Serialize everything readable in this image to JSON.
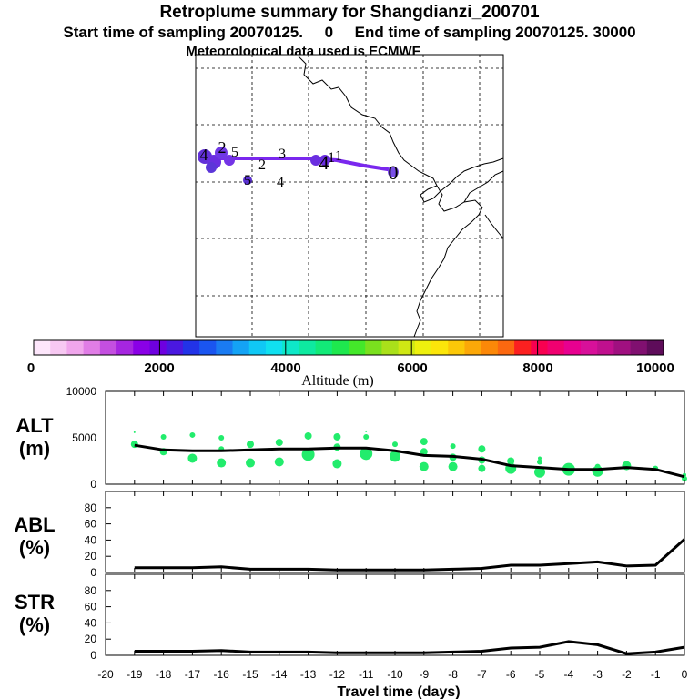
{
  "header": {
    "title": "Retroplume summary for Shangdianzi_200701",
    "subtitle": "Start time of sampling 20070125.     0     End time of sampling 20070125. 30000",
    "met": "Meteorological data used is ECMWF"
  },
  "chart_data": [
    {
      "type": "map",
      "name": "retroplume-track",
      "track_labels": [
        {
          "label": "0"
        },
        {
          "label": "1"
        },
        {
          "label": "2"
        },
        {
          "label": "3"
        },
        {
          "label": "4"
        },
        {
          "label": "5"
        },
        {
          "label": "2"
        },
        {
          "label": "4"
        },
        {
          "label": "5"
        },
        {
          "label": "1"
        },
        {
          "label": "4"
        }
      ]
    },
    {
      "type": "colorbar",
      "xlabel": "Altitude (m)",
      "ticks": [
        "0",
        "2000",
        "4000",
        "6000",
        "8000",
        "10000"
      ],
      "range": [
        0,
        10000
      ],
      "colors": [
        "#fde6fb",
        "#f7c8f2",
        "#f0a6ec",
        "#e07de6",
        "#c44fe0",
        "#a626e0",
        "#8a00e6",
        "#6e00e0",
        "#4a18e0",
        "#2233e8",
        "#1a55f0",
        "#1a7bf2",
        "#14a3f5",
        "#10c8f5",
        "#10e0f0",
        "#0ee8c8",
        "#0eeaa0",
        "#12ea78",
        "#1ee84e",
        "#44e82a",
        "#7ae01e",
        "#aae01a",
        "#d0e814",
        "#eef00e",
        "#fce60a",
        "#fcc808",
        "#fca808",
        "#fc8808",
        "#fc6810",
        "#fc2020",
        "#f80050",
        "#f00070",
        "#e80090",
        "#d8109a",
        "#c0108e",
        "#a01080",
        "#801070",
        "#5e0c5a"
      ]
    },
    {
      "type": "line",
      "name": "ALT",
      "ylabel": "ALT",
      "yunit": "(m)",
      "ylim": [
        0,
        10000
      ],
      "yticks": [
        "10000",
        "5000",
        "0"
      ],
      "x": [
        -19,
        -18,
        -17,
        -16,
        -15,
        -14,
        -13,
        -12,
        -11,
        -10,
        -9,
        -8,
        -7,
        -6,
        -5,
        -4,
        -3,
        -2,
        -1,
        0
      ],
      "values": [
        4200,
        3700,
        3600,
        3600,
        3700,
        3800,
        3800,
        3900,
        3900,
        3600,
        3100,
        3000,
        2700,
        2000,
        1800,
        1600,
        1600,
        1800,
        1600,
        800
      ],
      "dots": [
        {
          "x": -19,
          "y": 4300,
          "r": 4
        },
        {
          "x": -19,
          "y": 5600,
          "r": 1
        },
        {
          "x": -18,
          "y": 3500,
          "r": 4
        },
        {
          "x": -18,
          "y": 5100,
          "r": 3
        },
        {
          "x": -17,
          "y": 2800,
          "r": 5
        },
        {
          "x": -17,
          "y": 5300,
          "r": 3
        },
        {
          "x": -16,
          "y": 2300,
          "r": 5
        },
        {
          "x": -16,
          "y": 3800,
          "r": 3
        },
        {
          "x": -16,
          "y": 5000,
          "r": 3
        },
        {
          "x": -15,
          "y": 2300,
          "r": 5
        },
        {
          "x": -15,
          "y": 4300,
          "r": 4
        },
        {
          "x": -14,
          "y": 2400,
          "r": 5
        },
        {
          "x": -14,
          "y": 4500,
          "r": 4
        },
        {
          "x": -13,
          "y": 3200,
          "r": 7
        },
        {
          "x": -13,
          "y": 5200,
          "r": 4
        },
        {
          "x": -12,
          "y": 2200,
          "r": 5
        },
        {
          "x": -12,
          "y": 4000,
          "r": 4
        },
        {
          "x": -12,
          "y": 5100,
          "r": 4
        },
        {
          "x": -11,
          "y": 3300,
          "r": 7
        },
        {
          "x": -11,
          "y": 5100,
          "r": 3
        },
        {
          "x": -11,
          "y": 5700,
          "r": 1
        },
        {
          "x": -10,
          "y": 3000,
          "r": 6
        },
        {
          "x": -10,
          "y": 4300,
          "r": 3
        },
        {
          "x": -9,
          "y": 1900,
          "r": 5
        },
        {
          "x": -9,
          "y": 3500,
          "r": 4
        },
        {
          "x": -9,
          "y": 4600,
          "r": 4
        },
        {
          "x": -8,
          "y": 1900,
          "r": 5
        },
        {
          "x": -8,
          "y": 2900,
          "r": 4
        },
        {
          "x": -8,
          "y": 4100,
          "r": 3
        },
        {
          "x": -7,
          "y": 1700,
          "r": 4
        },
        {
          "x": -7,
          "y": 2600,
          "r": 4
        },
        {
          "x": -7,
          "y": 3800,
          "r": 4
        },
        {
          "x": -6,
          "y": 1700,
          "r": 6
        },
        {
          "x": -6,
          "y": 2500,
          "r": 4
        },
        {
          "x": -5,
          "y": 1300,
          "r": 6
        },
        {
          "x": -5,
          "y": 2400,
          "r": 3
        },
        {
          "x": -5,
          "y": 2800,
          "r": 2
        },
        {
          "x": -4,
          "y": 1600,
          "r": 7
        },
        {
          "x": -3,
          "y": 1400,
          "r": 6
        },
        {
          "x": -3,
          "y": 1900,
          "r": 3
        },
        {
          "x": -2,
          "y": 2000,
          "r": 5
        },
        {
          "x": -1,
          "y": 1700,
          "r": 3
        },
        {
          "x": 0,
          "y": 1000,
          "r": 2
        },
        {
          "x": 0,
          "y": 600,
          "r": 3
        }
      ]
    },
    {
      "type": "line",
      "name": "ABL",
      "ylabel": "ABL",
      "yunit": "(%)",
      "ylim": [
        0,
        100
      ],
      "yticks": [
        "80",
        "60",
        "40",
        "20",
        "0"
      ],
      "x": [
        -19,
        -18,
        -17,
        -16,
        -15,
        -14,
        -13,
        -12,
        -11,
        -10,
        -9,
        -8,
        -7,
        -6,
        -5,
        -4,
        -3,
        -2,
        -1,
        0
      ],
      "values": [
        6,
        6,
        6,
        7,
        4,
        4,
        4,
        3,
        3,
        3,
        3,
        4,
        5,
        9,
        9,
        11,
        13,
        8,
        9,
        41
      ]
    },
    {
      "type": "line",
      "name": "STR",
      "ylabel": "STR",
      "yunit": "(%)",
      "ylim": [
        0,
        100
      ],
      "yticks": [
        "80",
        "60",
        "40",
        "20",
        "0"
      ],
      "xlabel": "Travel time (days)",
      "xticks": [
        "-20",
        "-19",
        "-18",
        "-17",
        "-16",
        "-15",
        "-14",
        "-13",
        "-12",
        "-11",
        "-10",
        "-9",
        "-8",
        "-7",
        "-6",
        "-5",
        "-4",
        "-3",
        "-2",
        "-1",
        "0"
      ],
      "x": [
        -19,
        -18,
        -17,
        -16,
        -15,
        -14,
        -13,
        -12,
        -11,
        -10,
        -9,
        -8,
        -7,
        -6,
        -5,
        -4,
        -3,
        -2,
        -1,
        0
      ],
      "values": [
        5,
        5,
        5,
        6,
        4,
        4,
        4,
        3,
        3,
        3,
        3,
        4,
        5,
        9,
        10,
        17,
        13,
        2,
        4,
        10
      ]
    }
  ]
}
